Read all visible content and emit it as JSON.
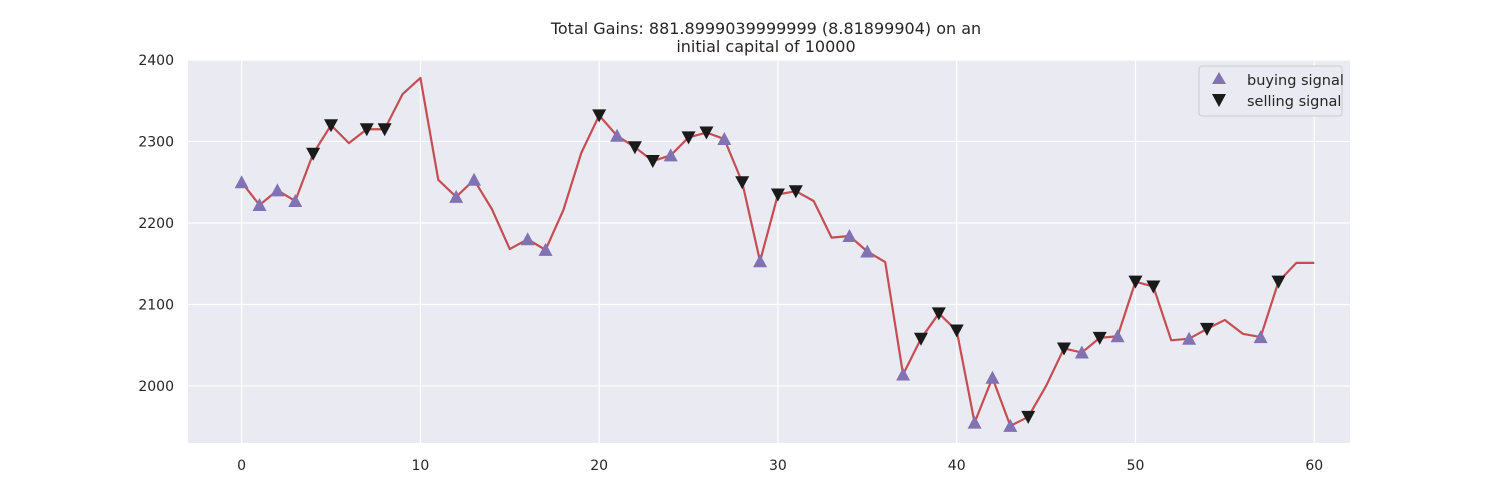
{
  "chart_data": {
    "type": "line",
    "title_line1": "Total Gains: 881.8999039999999 (8.81899904) on an",
    "title_line2": "initial capital of 10000",
    "xlabel": "",
    "ylabel": "",
    "xlim": [
      -3,
      62
    ],
    "ylim": [
      1930,
      2400
    ],
    "xticks": [
      0,
      10,
      20,
      30,
      40,
      50,
      60
    ],
    "yticks": [
      2000,
      2100,
      2200,
      2300,
      2400
    ],
    "grid": true,
    "legend_position": "top-right",
    "colors": {
      "plot_background": "#eaeaf2",
      "grid": "#ffffff",
      "line": "#c44e52",
      "buy_marker": "#8172b3",
      "sell_marker": "#1a1a1a"
    },
    "series": [
      {
        "kind": "line",
        "x": [
          0,
          1,
          2,
          3,
          4,
          5,
          6,
          7,
          8,
          9,
          10,
          11,
          12,
          13,
          14,
          15,
          16,
          17,
          18,
          19,
          20,
          21,
          22,
          23,
          24,
          25,
          26,
          27,
          28,
          29,
          30,
          31,
          32,
          33,
          34,
          35,
          36,
          37,
          38,
          39,
          40,
          41,
          42,
          43,
          44,
          45,
          46,
          47,
          48,
          49,
          50,
          51,
          52,
          53,
          54,
          55,
          56,
          57,
          58,
          59,
          60
        ],
        "values": [
          2250,
          2222,
          2240,
          2227,
          2285,
          2320,
          2298,
          2315,
          2315,
          2358,
          2378,
          2253,
          2232,
          2253,
          2217,
          2168,
          2180,
          2167,
          2216,
          2286,
          2332,
          2307,
          2293,
          2276,
          2283,
          2305,
          2311,
          2303,
          2250,
          2153,
          2235,
          2239,
          2227,
          2182,
          2184,
          2165,
          2152,
          2014,
          2058,
          2089,
          2068,
          1955,
          2010,
          1951,
          1962,
          2000,
          2046,
          2041,
          2059,
          2061,
          2128,
          2122,
          2056,
          2058,
          2070,
          2081,
          2064,
          2060,
          2128,
          2151,
          2151
        ]
      },
      {
        "kind": "markers",
        "name": "buying signal",
        "marker": "triangle-up",
        "x": [
          0,
          1,
          2,
          3,
          12,
          13,
          16,
          17,
          21,
          24,
          27,
          29,
          34,
          35,
          37,
          41,
          42,
          43,
          47,
          49,
          53,
          57
        ],
        "values": [
          2250,
          2222,
          2240,
          2227,
          2232,
          2253,
          2180,
          2167,
          2307,
          2283,
          2303,
          2153,
          2184,
          2165,
          2014,
          1955,
          2010,
          1951,
          2041,
          2061,
          2058,
          2060
        ]
      },
      {
        "kind": "markers",
        "name": "selling signal",
        "marker": "triangle-down",
        "x": [
          4,
          5,
          7,
          8,
          20,
          22,
          23,
          25,
          26,
          28,
          30,
          31,
          38,
          39,
          40,
          44,
          46,
          48,
          50,
          51,
          54,
          58
        ],
        "values": [
          2285,
          2320,
          2315,
          2315,
          2332,
          2293,
          2276,
          2305,
          2311,
          2250,
          2235,
          2239,
          2058,
          2089,
          2068,
          1962,
          2046,
          2059,
          2128,
          2122,
          2070,
          2128
        ]
      }
    ]
  }
}
